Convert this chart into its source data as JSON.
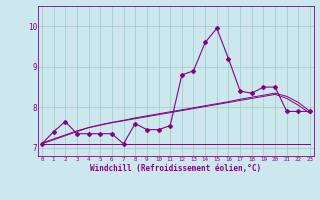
{
  "xlabel": "Windchill (Refroidissement éolien,°C)",
  "background_color": "#cce8ee",
  "grid_color": "#99ccbb",
  "line_color": "#880088",
  "x_hours": [
    0,
    1,
    2,
    3,
    4,
    5,
    6,
    7,
    8,
    9,
    10,
    11,
    12,
    13,
    14,
    15,
    16,
    17,
    18,
    19,
    20,
    21,
    22,
    23
  ],
  "y_main": [
    7.1,
    7.4,
    7.65,
    7.35,
    7.35,
    7.35,
    7.35,
    7.1,
    7.6,
    7.45,
    7.45,
    7.55,
    8.8,
    8.9,
    9.6,
    9.95,
    9.2,
    8.4,
    8.35,
    8.5,
    8.5,
    7.9,
    7.9,
    7.9
  ],
  "y_min": [
    7.1,
    7.1,
    7.1,
    7.1,
    7.1,
    7.1,
    7.1,
    7.1,
    7.1,
    7.1,
    7.1,
    7.1,
    7.1,
    7.1,
    7.1,
    7.1,
    7.1,
    7.1,
    7.1,
    7.1,
    7.1,
    7.1,
    7.1,
    7.1
  ],
  "y_reg1": [
    7.1,
    7.2,
    7.3,
    7.4,
    7.5,
    7.57,
    7.63,
    7.68,
    7.74,
    7.79,
    7.84,
    7.89,
    7.94,
    7.99,
    8.04,
    8.09,
    8.14,
    8.2,
    8.25,
    8.3,
    8.35,
    8.27,
    8.12,
    7.9
  ],
  "y_reg2": [
    7.12,
    7.22,
    7.32,
    7.42,
    7.5,
    7.56,
    7.62,
    7.67,
    7.72,
    7.77,
    7.82,
    7.87,
    7.92,
    7.97,
    8.02,
    8.07,
    8.12,
    8.17,
    8.22,
    8.27,
    8.32,
    8.22,
    8.05,
    7.85
  ],
  "ylim": [
    6.8,
    10.5
  ],
  "yticks": [
    7,
    8,
    9,
    10
  ]
}
